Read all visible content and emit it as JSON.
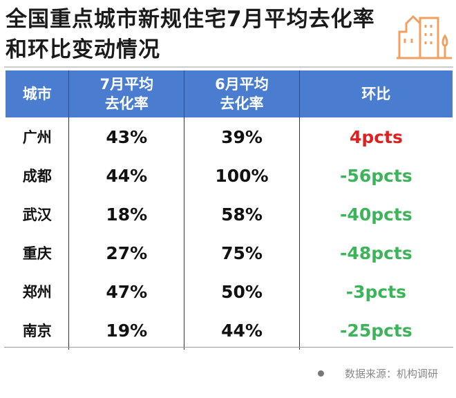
{
  "title": "全国重点城市新规住宅7月平均去化率和环比变动情况",
  "headers": [
    "城市",
    "7月平均去化率",
    "6月平均去化率",
    "环比"
  ],
  "rows": [
    {
      "city": "广州",
      "jul": "43%",
      "jun": "39%",
      "change": "4pcts",
      "dir": "up"
    },
    {
      "city": "成都",
      "jul": "44%",
      "jun": "100%",
      "change": "-56pcts",
      "dir": "down"
    },
    {
      "city": "武汉",
      "jul": "18%",
      "jun": "58%",
      "change": "-40pcts",
      "dir": "down"
    },
    {
      "city": "重庆",
      "jul": "27%",
      "jun": "75%",
      "change": "-48pcts",
      "dir": "down"
    },
    {
      "city": "郑州",
      "jul": "47%",
      "jun": "50%",
      "change": "-3pcts",
      "dir": "down"
    },
    {
      "city": "南京",
      "jul": "19%",
      "jun": "44%",
      "change": "-25pcts",
      "dir": "down"
    }
  ],
  "source": "数据来源：机构调研",
  "colors": {
    "header": "#4a7dd0",
    "up": "#e02020",
    "down": "#3cb45a",
    "logo": "#f0a060"
  },
  "logo_icon": "buildings-icon"
}
